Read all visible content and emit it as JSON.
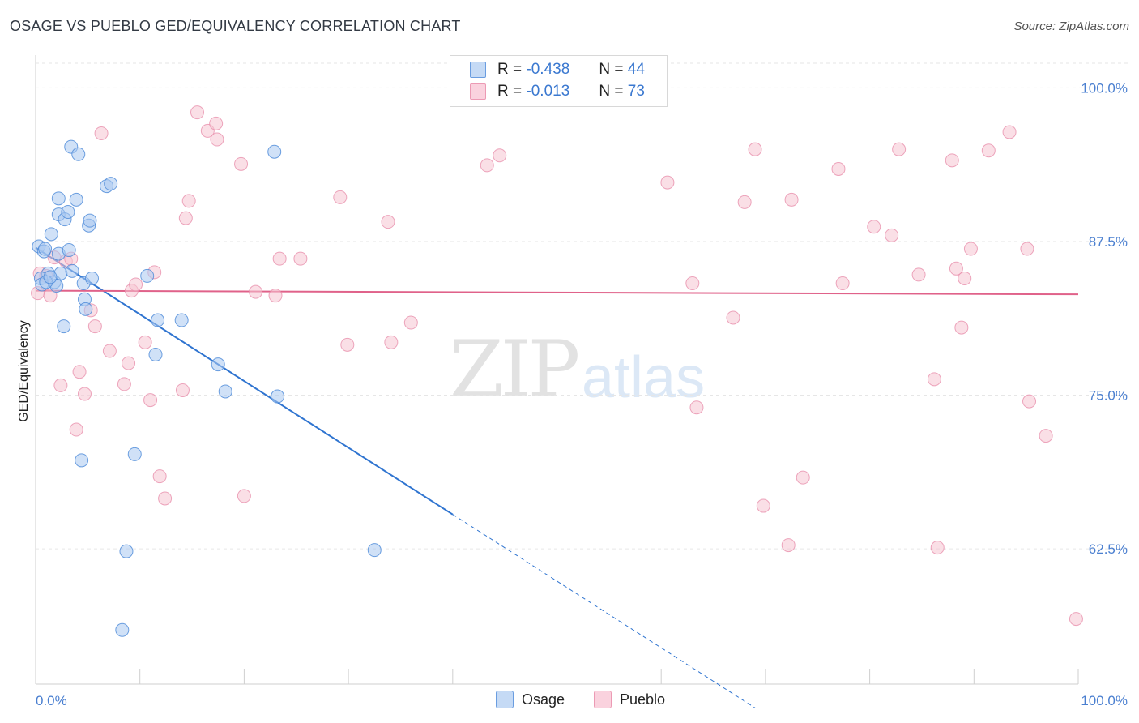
{
  "title": "OSAGE VS PUEBLO GED/EQUIVALENCY CORRELATION CHART",
  "source": "Source: ZipAtlas.com",
  "watermark": {
    "zip": "ZIP",
    "atlas": "atlas"
  },
  "legend": {
    "rows": [
      {
        "r_label": "R =",
        "r_value": "-0.438",
        "n_label": "N =",
        "n_value": "44"
      },
      {
        "r_label": "R =",
        "r_value": "-0.013",
        "n_label": "N =",
        "n_value": "73"
      }
    ]
  },
  "bottom_legend": {
    "osage": "Osage",
    "pueblo": "Pueblo"
  },
  "colors": {
    "osage_fill": "#aac8f0",
    "osage_stroke": "#4a88d8",
    "osage_line": "#2f74d0",
    "pueblo_fill": "#f6c4d2",
    "pueblo_stroke": "#e890ad",
    "pueblo_line": "#e0628a",
    "tick_text": "#4a7fd0",
    "grid": "#e6e6e6"
  },
  "chart_data": {
    "type": "scatter",
    "title": "OSAGE VS PUEBLO GED/EQUIVALENCY CORRELATION CHART",
    "xlabel": "",
    "ylabel": "GED/Equivalency",
    "xlim": [
      0,
      100
    ],
    "ylim": [
      51.5,
      102
    ],
    "x_tick_labels": [
      "0.0%",
      "100.0%"
    ],
    "y_ticks": [
      {
        "value": 100,
        "label": "100.0%"
      },
      {
        "value": 87.5,
        "label": "87.5%"
      },
      {
        "value": 75,
        "label": "75.0%"
      },
      {
        "value": 62.5,
        "label": "62.5%"
      }
    ],
    "series": [
      {
        "name": "Osage",
        "R": -0.438,
        "N": 44,
        "trend": {
          "x0": 0,
          "y0": 87.0,
          "x1": 40,
          "y1": 65.3,
          "dash_to_x": 69
        },
        "points": [
          [
            0.3,
            87.1
          ],
          [
            0.8,
            86.7
          ],
          [
            1.2,
            84.9
          ],
          [
            1.5,
            88.1
          ],
          [
            0.5,
            84.5
          ],
          [
            1.8,
            84.2
          ],
          [
            2.0,
            83.9
          ],
          [
            2.2,
            89.7
          ],
          [
            2.2,
            86.5
          ],
          [
            2.4,
            84.9
          ],
          [
            2.2,
            91.0
          ],
          [
            2.7,
            80.6
          ],
          [
            2.8,
            89.3
          ],
          [
            3.1,
            89.9
          ],
          [
            3.2,
            86.8
          ],
          [
            3.4,
            95.2
          ],
          [
            3.5,
            85.1
          ],
          [
            3.9,
            90.9
          ],
          [
            4.1,
            94.6
          ],
          [
            4.4,
            69.7
          ],
          [
            4.6,
            84.1
          ],
          [
            4.7,
            82.8
          ],
          [
            4.8,
            82.0
          ],
          [
            5.1,
            88.8
          ],
          [
            5.2,
            89.2
          ],
          [
            5.4,
            84.5
          ],
          [
            6.8,
            92.0
          ],
          [
            7.2,
            92.2
          ],
          [
            8.3,
            55.9
          ],
          [
            8.7,
            62.3
          ],
          [
            9.5,
            70.2
          ],
          [
            10.7,
            84.7
          ],
          [
            11.5,
            78.3
          ],
          [
            11.7,
            81.1
          ],
          [
            14.0,
            81.1
          ],
          [
            17.5,
            77.5
          ],
          [
            18.2,
            75.3
          ],
          [
            22.9,
            94.8
          ],
          [
            23.2,
            74.9
          ],
          [
            32.5,
            62.4
          ],
          [
            0.6,
            84.0
          ],
          [
            1.0,
            84.2
          ],
          [
            1.4,
            84.6
          ],
          [
            0.9,
            86.9
          ]
        ]
      },
      {
        "name": "Pueblo",
        "R": -0.013,
        "N": 73,
        "trend": {
          "x0": 0,
          "y0": 83.5,
          "x1": 100,
          "y1": 83.2
        },
        "points": [
          [
            0.2,
            83.3
          ],
          [
            0.4,
            84.9
          ],
          [
            1.0,
            84.7
          ],
          [
            1.4,
            83.1
          ],
          [
            1.8,
            86.2
          ],
          [
            2.4,
            75.8
          ],
          [
            2.9,
            85.9
          ],
          [
            3.4,
            86.1
          ],
          [
            3.9,
            72.2
          ],
          [
            4.2,
            76.9
          ],
          [
            4.7,
            75.1
          ],
          [
            5.3,
            81.9
          ],
          [
            5.7,
            80.6
          ],
          [
            6.3,
            96.3
          ],
          [
            7.1,
            78.6
          ],
          [
            8.5,
            75.9
          ],
          [
            8.9,
            77.6
          ],
          [
            9.2,
            83.5
          ],
          [
            9.6,
            84.0
          ],
          [
            10.5,
            79.3
          ],
          [
            11.0,
            74.6
          ],
          [
            11.4,
            85.0
          ],
          [
            11.9,
            68.4
          ],
          [
            12.4,
            66.6
          ],
          [
            14.1,
            75.4
          ],
          [
            14.4,
            89.4
          ],
          [
            14.7,
            90.8
          ],
          [
            15.5,
            98.0
          ],
          [
            16.5,
            96.5
          ],
          [
            17.4,
            95.8
          ],
          [
            17.3,
            97.1
          ],
          [
            19.7,
            93.8
          ],
          [
            20.0,
            66.8
          ],
          [
            21.1,
            83.4
          ],
          [
            23.0,
            83.1
          ],
          [
            23.4,
            86.1
          ],
          [
            25.4,
            86.1
          ],
          [
            29.2,
            91.1
          ],
          [
            29.9,
            79.1
          ],
          [
            33.8,
            89.1
          ],
          [
            34.1,
            79.3
          ],
          [
            36.0,
            80.9
          ],
          [
            43.3,
            93.7
          ],
          [
            44.5,
            94.5
          ],
          [
            60.6,
            92.3
          ],
          [
            63.0,
            84.1
          ],
          [
            63.4,
            74.0
          ],
          [
            66.9,
            81.3
          ],
          [
            68.0,
            90.7
          ],
          [
            69.0,
            95.0
          ],
          [
            69.8,
            66.0
          ],
          [
            72.2,
            62.8
          ],
          [
            72.5,
            90.9
          ],
          [
            73.6,
            68.3
          ],
          [
            77.0,
            93.4
          ],
          [
            77.4,
            84.1
          ],
          [
            80.4,
            88.7
          ],
          [
            82.1,
            88.0
          ],
          [
            82.8,
            95.0
          ],
          [
            84.7,
            84.8
          ],
          [
            86.2,
            76.3
          ],
          [
            86.5,
            62.6
          ],
          [
            87.9,
            94.1
          ],
          [
            88.3,
            85.3
          ],
          [
            88.8,
            80.5
          ],
          [
            89.1,
            84.5
          ],
          [
            89.7,
            86.9
          ],
          [
            91.4,
            94.9
          ],
          [
            93.4,
            96.4
          ],
          [
            95.1,
            86.9
          ],
          [
            95.3,
            74.5
          ],
          [
            96.9,
            71.7
          ],
          [
            99.8,
            56.8
          ]
        ]
      }
    ]
  }
}
